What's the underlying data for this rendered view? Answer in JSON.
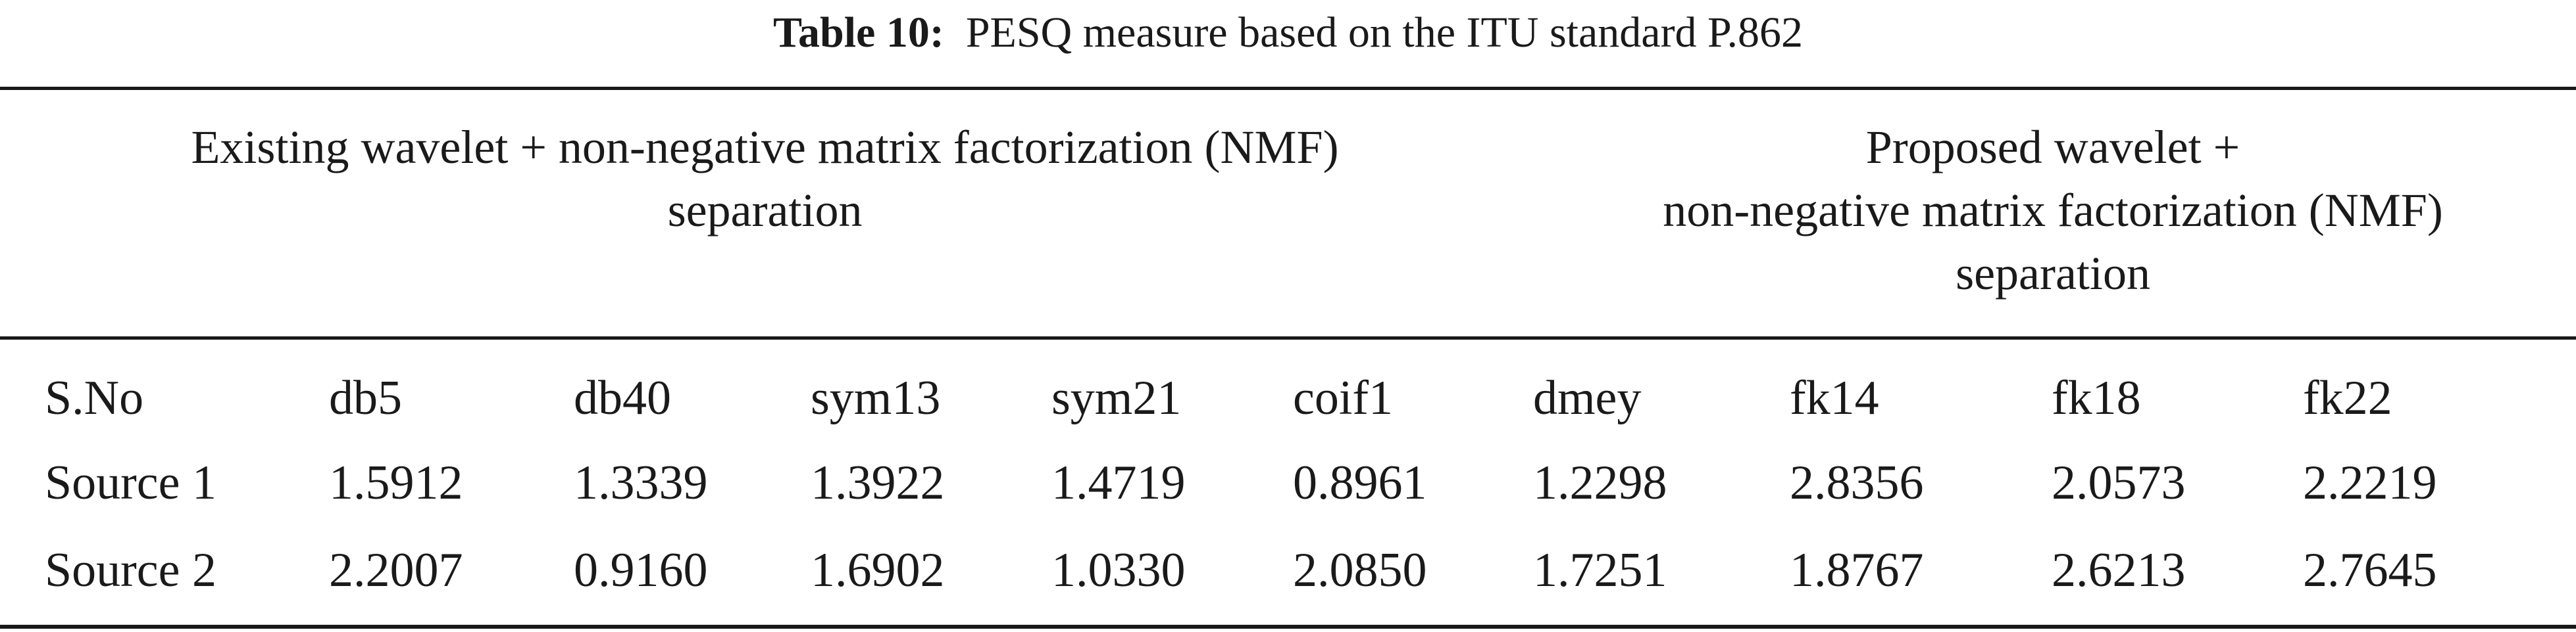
{
  "caption": {
    "label": "Table 10:",
    "text": "PESQ measure based on the ITU standard P.862"
  },
  "groups": {
    "existing": {
      "line1": "Existing wavelet + non-negative matrix factorization (NMF)",
      "line2": "separation"
    },
    "proposed": {
      "line1": "Proposed wavelet +",
      "line2": "non-negative matrix factorization (NMF)",
      "line3": "separation"
    }
  },
  "table": {
    "headers": [
      "S.No",
      "db5",
      "db40",
      "sym13",
      "sym21",
      "coif1",
      "dmey",
      "fk14",
      "fk18",
      "fk22"
    ],
    "rows": [
      [
        "Source 1",
        "1.5912",
        "1.3339",
        "1.3922",
        "1.4719",
        "0.8961",
        "1.2298",
        "2.8356",
        "2.0573",
        "2.2219"
      ],
      [
        "Source 2",
        "2.2007",
        "0.9160",
        "1.6902",
        "1.0330",
        "2.0850",
        "1.7251",
        "1.8767",
        "2.6213",
        "2.7645"
      ]
    ]
  }
}
